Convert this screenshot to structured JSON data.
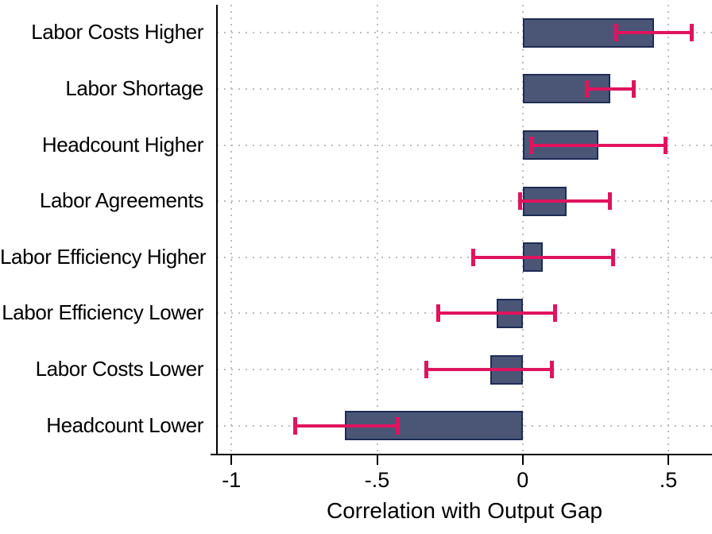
{
  "chart_data": {
    "type": "bar",
    "orientation": "horizontal",
    "categories": [
      "Labor Costs Higher",
      "Labor Shortage",
      "Headcount Higher",
      "Labor Agreements",
      "Labor Efficiency Higher",
      "Labor Efficiency Lower",
      "Labor Costs Lower",
      "Headcount Lower"
    ],
    "values": [
      0.45,
      0.3,
      0.26,
      0.15,
      0.07,
      -0.09,
      -0.11,
      -0.61
    ],
    "ci_low": [
      0.32,
      0.22,
      0.03,
      -0.01,
      -0.17,
      -0.29,
      -0.33,
      -0.78
    ],
    "ci_high": [
      0.58,
      0.38,
      0.49,
      0.3,
      0.31,
      0.11,
      0.1,
      -0.43
    ],
    "bar_base": 0,
    "title": "",
    "xlabel": "Correlation with Output Gap",
    "ylabel": "",
    "xticks": [
      -1,
      -0.5,
      0,
      0.5
    ],
    "xtick_labels": [
      "-1",
      "-.5",
      "0",
      ".5"
    ],
    "xlim": [
      -1.05,
      0.65
    ],
    "grid": true,
    "legend": "none",
    "colors": {
      "bar_fill": "#4b5676",
      "bar_border": "#1e2c55",
      "ci": "#e0145e",
      "grid": "#bdbdbd",
      "axis": "#000000",
      "text": "#000000",
      "background": "#ffffff"
    }
  }
}
